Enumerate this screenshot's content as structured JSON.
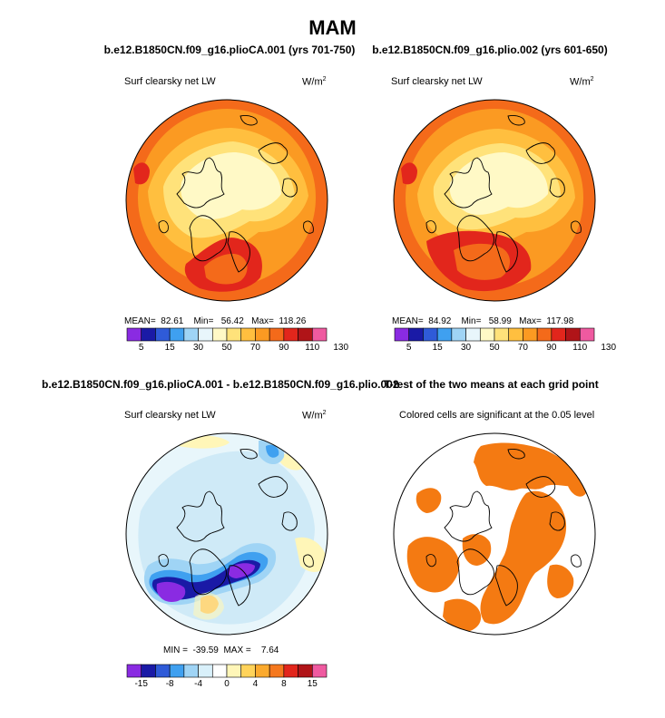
{
  "figure": {
    "title": "MAM",
    "units_base": "W/m",
    "units_exp": "2"
  },
  "panels": {
    "top_left": {
      "title": "b.e12.B1850CN.f09_g16.plioCA.001 (yrs 701-750)",
      "subtitle": "Surf clearsky net LW",
      "mean_label": "MEAN=",
      "mean_value": "82.61",
      "min_label": "Min=",
      "min_value": "56.42",
      "max_label": "Max=",
      "max_value": "118.26"
    },
    "top_right": {
      "title": "b.e12.B1850CN.f09_g16.plio.002 (yrs 601-650)",
      "subtitle": "Surf clearsky net LW",
      "mean_label": "MEAN=",
      "mean_value": "84.92",
      "min_label": "Min=",
      "min_value": "58.99",
      "max_label": "Max=",
      "max_value": "117.98"
    },
    "bottom_left": {
      "title": "b.e12.B1850CN.f09_g16.plioCA.001 - b.e12.B1850CN.f09_g16.plio.002",
      "subtitle": "Surf clearsky net LW",
      "min_label": "MIN =",
      "min_value": "-39.59",
      "max_label": "MAX =",
      "max_value": "7.64"
    },
    "bottom_right": {
      "title": "T-test of the two means at each grid point",
      "subtitle": "Colored cells are significant at the 0.05 level"
    }
  },
  "colorbars": {
    "absolute": {
      "colors": [
        "#8a2be2",
        "#1a1aa6",
        "#2f5bd8",
        "#3fa0f0",
        "#9fd4f5",
        "#e8f6fb",
        "#fff9c6",
        "#ffe27a",
        "#ffbf3f",
        "#fb9a22",
        "#f46a1a",
        "#e2261c",
        "#b01418",
        "#ef5aa0"
      ],
      "labels": [
        "5",
        "15",
        "30",
        "50",
        "70",
        "90",
        "110",
        "130"
      ]
    },
    "difference": {
      "colors": [
        "#8a2be2",
        "#1a1aa6",
        "#2f5bd8",
        "#3fa0f0",
        "#9fd4f5",
        "#d9f0fa",
        "#ffffff",
        "#fff6b8",
        "#ffd35a",
        "#fbaa2e",
        "#f5781e",
        "#e2261c",
        "#b01418",
        "#ef5aa0"
      ],
      "labels": [
        "-15",
        "-8",
        "-4",
        "0",
        "4",
        "8",
        "15"
      ]
    }
  },
  "colors": {
    "ttest_fill": "#f47a12",
    "land_outline": "#000000"
  }
}
